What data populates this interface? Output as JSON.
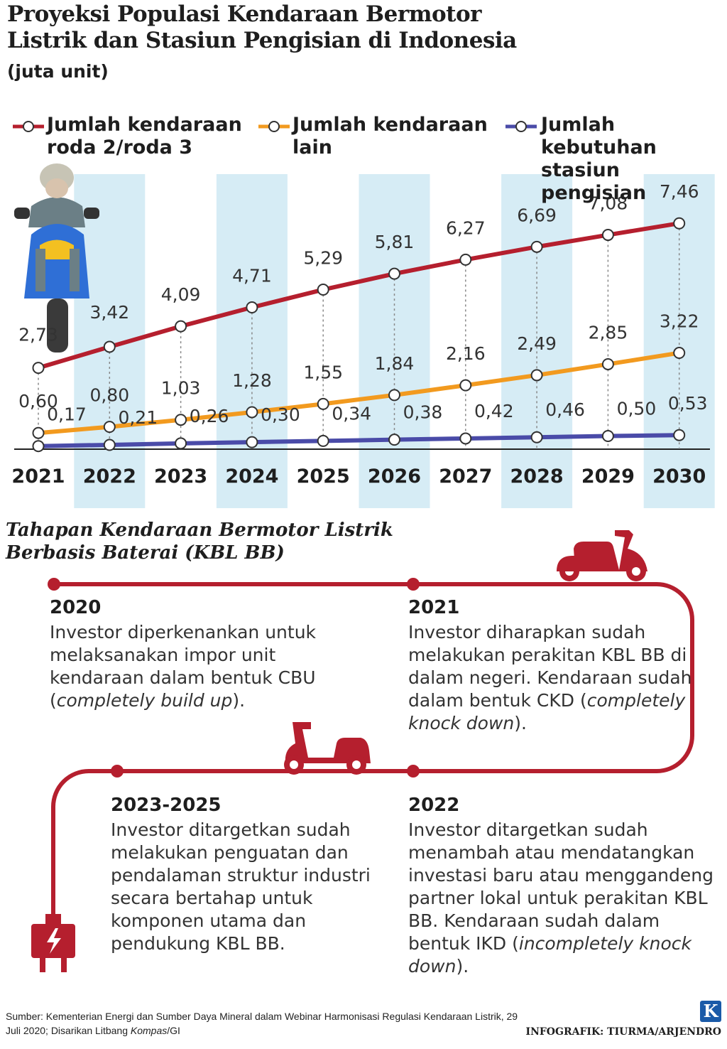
{
  "header": {
    "title_line1": "Proyeksi Populasi Kendaraan Bermotor",
    "title_line2": "Listrik dan Stasiun Pengisian di Indonesia",
    "unit": "(juta unit)"
  },
  "colors": {
    "roda23": "#b51f2e",
    "lain": "#f29a1f",
    "stasiun": "#4a4ba8",
    "band": "#d6ecf5",
    "timeline": "#b51f2e"
  },
  "chart_data": {
    "type": "line",
    "title": "Proyeksi Populasi Kendaraan Bermotor Listrik dan Stasiun Pengisian di Indonesia",
    "ylabel": "(juta unit)",
    "categories": [
      "2021",
      "2022",
      "2023",
      "2024",
      "2025",
      "2026",
      "2027",
      "2028",
      "2029",
      "2030"
    ],
    "series": [
      {
        "name_line1": "Jumlah kendaraan",
        "name_line2": "roda 2/roda 3",
        "color": "#b51f2e",
        "values": [
          2.73,
          3.42,
          4.09,
          4.71,
          5.29,
          5.81,
          6.27,
          6.69,
          7.08,
          7.46
        ],
        "labels": [
          "2,73",
          "3,42",
          "4,09",
          "4,71",
          "5,29",
          "5,81",
          "6,27",
          "6,69",
          "7,08",
          "7,46"
        ]
      },
      {
        "name_line1": "Jumlah kendaraan",
        "name_line2": "lain",
        "color": "#f29a1f",
        "values": [
          0.6,
          0.8,
          1.03,
          1.28,
          1.55,
          1.84,
          2.16,
          2.49,
          2.85,
          3.22
        ],
        "labels": [
          "0,60",
          "0,80",
          "1,03",
          "1,28",
          "1,55",
          "1,84",
          "2,16",
          "2,49",
          "2,85",
          "3,22"
        ]
      },
      {
        "name_line1": "Jumlah kebutuhan",
        "name_line2": "stasiun pengisian",
        "color": "#4a4ba8",
        "values": [
          0.17,
          0.21,
          0.26,
          0.3,
          0.34,
          0.38,
          0.42,
          0.46,
          0.5,
          0.53
        ],
        "labels": [
          "0,17",
          "0,21",
          "0,26",
          "0,30",
          "0,34",
          "0,38",
          "0,42",
          "0,46",
          "0,50",
          "0,53"
        ]
      }
    ],
    "legend": "top"
  },
  "timeline": {
    "title_line1": "Tahapan Kendaraan Bermotor Listrik",
    "title_line2": "Berbasis Baterai (KBL BB)",
    "steps": [
      {
        "year": "2020",
        "pre": "Investor diperkenankan untuk melaksanakan impor unit kendaraan dalam bentuk CBU (",
        "italic": "completely build up",
        "post": ")."
      },
      {
        "year": "2021",
        "pre": "Investor diharapkan sudah melakukan perakitan KBL BB di dalam negeri. Kendaraan sudah dalam bentuk CKD (",
        "italic": "completely knock down",
        "post": ")."
      },
      {
        "year": "2022",
        "pre": "Investor ditargetkan sudah menambah atau mendatangkan investasi baru atau menggandeng partner lokal untuk perakitan KBL BB. Kendaraan sudah dalam bentuk IKD (",
        "italic": "incompletely knock down",
        "post": ")."
      },
      {
        "year": "2023-2025",
        "pre": "Investor ditargetkan sudah melakukan penguatan dan pendalaman struktur industri secara bertahap untuk komponen utama dan pendukung KBL BB.",
        "italic": "",
        "post": ""
      }
    ]
  },
  "footer": {
    "source_pre": "Sumber: Kementerian Energi dan Sumber Daya Mineral dalam Webinar Harmonisasi Regulasi Kendaraan Listrik, 29 Juli 2020; Disarikan Litbang ",
    "source_italic": "Kompas",
    "source_post": "/GI",
    "credit": "INFOGRAFIK: TIURMA/ARJENDRO",
    "logo": "K"
  }
}
